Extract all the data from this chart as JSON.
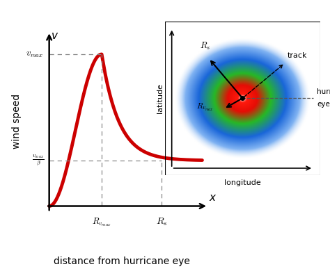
{
  "background_color": "#ffffff",
  "curve_color": "#cc0000",
  "curve_linewidth": 3.5,
  "arrow_color": "#111111",
  "dashed_color": "#888888",
  "R_vmax": 0.35,
  "R_s": 0.75,
  "v_max": 1.0,
  "v_max_over_beta": 0.3,
  "xlabel": "distance from hurricane eye",
  "ylabel": "wind speed",
  "x_axis_label": "x",
  "y_axis_label": "v",
  "tick_vmax": "$v_{max}$",
  "tick_vmax_beta": "$\\frac{v_{max}}{\\beta}$",
  "tick_Rvmax": "$R_{v_{max}}$",
  "tick_Rs": "$R_s$",
  "inset": {
    "label_Rs": "$\\boldsymbol{R_s}$",
    "label_Rvmax": "$\\boldsymbol{R_{v_{max}}}$",
    "label_track": "track",
    "label_eye": "hurricane\neye",
    "longitude_label": "longitude",
    "latitude_label": "latitude"
  }
}
